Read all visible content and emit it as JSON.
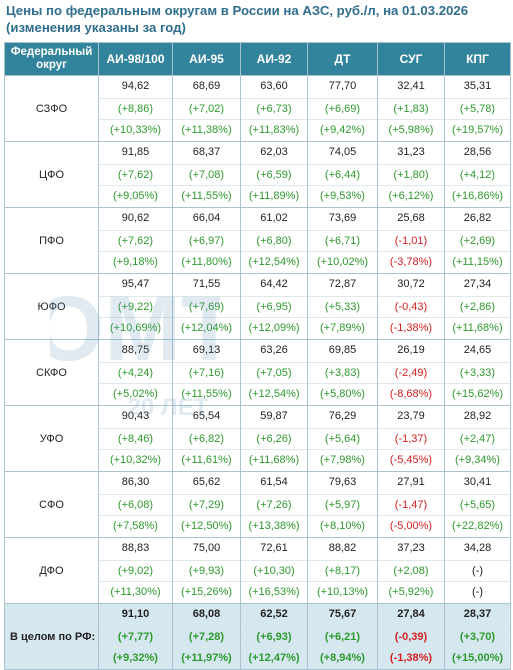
{
  "title_line1": "Цены по федеральным округам в России на АЗС, руб./л, на 01.03.2026",
  "title_line2": "(изменения указаны за год)",
  "headers": [
    "Федеральный округ",
    "АИ-98/100",
    "АИ-95",
    "АИ-92",
    "ДТ",
    "СУГ",
    "КПГ"
  ],
  "watermark": {
    "text": "ОМТ",
    "sub": "20 ЛЕТ"
  },
  "rows": [
    {
      "region": "СЗФО",
      "cells": [
        {
          "p": "94,62",
          "a": "(+8,86)",
          "r": "(+10,33%)",
          "s": "pos"
        },
        {
          "p": "68,69",
          "a": "(+7,02)",
          "r": "(+11,38%)",
          "s": "pos"
        },
        {
          "p": "63,60",
          "a": "(+6,73)",
          "r": "(+11,83%)",
          "s": "pos"
        },
        {
          "p": "77,70",
          "a": "(+6,69)",
          "r": "(+9,42%)",
          "s": "pos"
        },
        {
          "p": "32,41",
          "a": "(+1,83)",
          "r": "(+5,98%)",
          "s": "pos"
        },
        {
          "p": "35,31",
          "a": "(+5,78)",
          "r": "(+19,57%)",
          "s": "pos"
        }
      ]
    },
    {
      "region": "ЦФО",
      "cells": [
        {
          "p": "91,85",
          "a": "(+7,62)",
          "r": "(+9,05%)",
          "s": "pos"
        },
        {
          "p": "68,37",
          "a": "(+7,08)",
          "r": "(+11,55%)",
          "s": "pos"
        },
        {
          "p": "62,03",
          "a": "(+6,59)",
          "r": "(+11,89%)",
          "s": "pos"
        },
        {
          "p": "74,05",
          "a": "(+6,44)",
          "r": "(+9,53%)",
          "s": "pos"
        },
        {
          "p": "31,23",
          "a": "(+1,80)",
          "r": "(+6,12%)",
          "s": "pos"
        },
        {
          "p": "28,56",
          "a": "(+4,12)",
          "r": "(+16,86%)",
          "s": "pos"
        }
      ]
    },
    {
      "region": "ПФО",
      "cells": [
        {
          "p": "90,62",
          "a": "(+7,62)",
          "r": "(+9,18%)",
          "s": "pos"
        },
        {
          "p": "66,04",
          "a": "(+6,97)",
          "r": "(+11,80%)",
          "s": "pos"
        },
        {
          "p": "61,02",
          "a": "(+6,80)",
          "r": "(+12,54%)",
          "s": "pos"
        },
        {
          "p": "73,69",
          "a": "(+6,71)",
          "r": "(+10,02%)",
          "s": "pos"
        },
        {
          "p": "25,68",
          "a": "(-1,01)",
          "r": "(-3,78%)",
          "s": "neg"
        },
        {
          "p": "26,82",
          "a": "(+2,69)",
          "r": "(+11,15%)",
          "s": "pos"
        }
      ]
    },
    {
      "region": "ЮФО",
      "cells": [
        {
          "p": "95,47",
          "a": "(+9,22)",
          "r": "(+10,69%)",
          "s": "pos"
        },
        {
          "p": "71,55",
          "a": "(+7,69)",
          "r": "(+12,04%)",
          "s": "pos"
        },
        {
          "p": "64,42",
          "a": "(+6,95)",
          "r": "(+12,09%)",
          "s": "pos"
        },
        {
          "p": "72,87",
          "a": "(+5,33)",
          "r": "(+7,89%)",
          "s": "pos"
        },
        {
          "p": "30,72",
          "a": "(-0,43)",
          "r": "(-1,38%)",
          "s": "neg"
        },
        {
          "p": "27,34",
          "a": "(+2,86)",
          "r": "(+11,68%)",
          "s": "pos"
        }
      ]
    },
    {
      "region": "СКФО",
      "cells": [
        {
          "p": "88,75",
          "a": "(+4,24)",
          "r": "(+5,02%)",
          "s": "pos"
        },
        {
          "p": "69,13",
          "a": "(+7,16)",
          "r": "(+11,55%)",
          "s": "pos"
        },
        {
          "p": "63,26",
          "a": "(+7,05)",
          "r": "(+12,54%)",
          "s": "pos"
        },
        {
          "p": "69,85",
          "a": "(+3,83)",
          "r": "(+5,80%)",
          "s": "pos"
        },
        {
          "p": "26,19",
          "a": "(-2,49)",
          "r": "(-8,68%)",
          "s": "neg"
        },
        {
          "p": "24,65",
          "a": "(+3,33)",
          "r": "(+15,62%)",
          "s": "pos"
        }
      ]
    },
    {
      "region": "УФО",
      "cells": [
        {
          "p": "90,43",
          "a": "(+8,46)",
          "r": "(+10,32%)",
          "s": "pos"
        },
        {
          "p": "65,54",
          "a": "(+6,82)",
          "r": "(+11,61%)",
          "s": "pos"
        },
        {
          "p": "59,87",
          "a": "(+6,26)",
          "r": "(+11,68%)",
          "s": "pos"
        },
        {
          "p": "76,29",
          "a": "(+5,64)",
          "r": "(+7,98%)",
          "s": "pos"
        },
        {
          "p": "23,79",
          "a": "(-1,37)",
          "r": "(-5,45%)",
          "s": "neg"
        },
        {
          "p": "28,92",
          "a": "(+2,47)",
          "r": "(+9,34%)",
          "s": "pos"
        }
      ]
    },
    {
      "region": "СФО",
      "cells": [
        {
          "p": "86,30",
          "a": "(+6,08)",
          "r": "(+7,58%)",
          "s": "pos"
        },
        {
          "p": "65,62",
          "a": "(+7,29)",
          "r": "(+12,50%)",
          "s": "pos"
        },
        {
          "p": "61,54",
          "a": "(+7,26)",
          "r": "(+13,38%)",
          "s": "pos"
        },
        {
          "p": "79,63",
          "a": "(+5,97)",
          "r": "(+8,10%)",
          "s": "pos"
        },
        {
          "p": "27,91",
          "a": "(-1,47)",
          "r": "(-5,00%)",
          "s": "neg"
        },
        {
          "p": "30,41",
          "a": "(+5,65)",
          "r": "(+22,82%)",
          "s": "pos"
        }
      ]
    },
    {
      "region": "ДФО",
      "cells": [
        {
          "p": "88,83",
          "a": "(+9,02)",
          "r": "(+11,30%)",
          "s": "pos"
        },
        {
          "p": "75,00",
          "a": "(+9,93)",
          "r": "(+15,26%)",
          "s": "pos"
        },
        {
          "p": "72,61",
          "a": "(+10,30)",
          "r": "(+16,53%)",
          "s": "pos"
        },
        {
          "p": "88,82",
          "a": "(+8,17)",
          "r": "(+10,13%)",
          "s": "pos"
        },
        {
          "p": "37,23",
          "a": "(+2,08)",
          "r": "(+5,92%)",
          "s": "pos"
        },
        {
          "p": "34,28",
          "a": "(-)",
          "r": "(-)",
          "s": "neu"
        }
      ]
    }
  ],
  "total": {
    "region": "В целом по РФ:",
    "cells": [
      {
        "p": "91,10",
        "a": "(+7,77)",
        "r": "(+9,32%)",
        "s": "pos"
      },
      {
        "p": "68,08",
        "a": "(+7,28)",
        "r": "(+11,97%)",
        "s": "pos"
      },
      {
        "p": "62,52",
        "a": "(+6,93)",
        "r": "(+12,47%)",
        "s": "pos"
      },
      {
        "p": "75,67",
        "a": "(+6,21)",
        "r": "(+8,94%)",
        "s": "pos"
      },
      {
        "p": "27,84",
        "a": "(-0,39)",
        "r": "(-1,38%)",
        "s": "neg"
      },
      {
        "p": "28,37",
        "a": "(+3,70)",
        "r": "(+15,00%)",
        "s": "pos"
      }
    ]
  }
}
